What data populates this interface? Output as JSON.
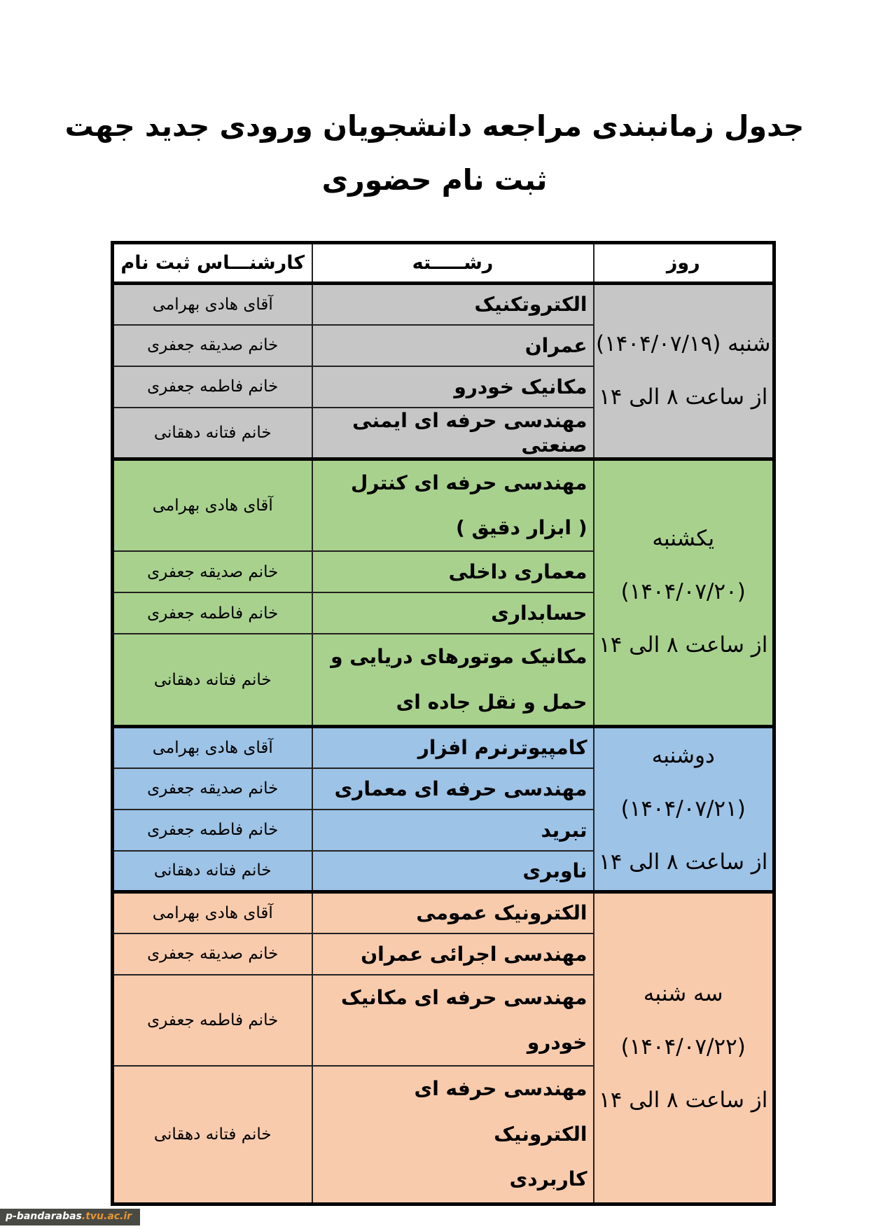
{
  "page": {
    "title_line1": "جدول زمانبندی مراجعه دانشجویان ورودی جدید جهت",
    "title_line2": "ثبت نام حضوری"
  },
  "table": {
    "headers": {
      "day": "روز",
      "major": "رشـــــته",
      "expert": "کارشنـــاس ثبت نام"
    },
    "groups": [
      {
        "name": "saturday",
        "color": "#c6c6c6",
        "day": "شنبه (۱۴۰۴/۰۷/۱۹)\nاز ساعت ۸ الی ۱۴",
        "rows": [
          {
            "major": "الکتروتکنیک",
            "expert": "آقای هادی بهرامی"
          },
          {
            "major": "عمران",
            "expert": "خانم صدیقه جعفری"
          },
          {
            "major": "مکانیک خودرو",
            "expert": "خانم فاطمه جعفری"
          },
          {
            "major": "مهندسی حرفه ای ایمنی صنعتی",
            "expert": "خانم فتانه دهقانی"
          }
        ]
      },
      {
        "name": "sunday",
        "color": "#a9d18e",
        "day": "یکشنبه (۱۴۰۴/۰۷/۲۰)\nاز ساعت ۸ الی ۱۴",
        "rows": [
          {
            "major": "مهندسی حرفه ای کنترل\n( ابزار دقیق )",
            "expert": "آقای هادی بهرامی"
          },
          {
            "major": "معماری داخلی",
            "expert": "خانم صدیقه جعفری"
          },
          {
            "major": "حسابداری",
            "expert": "خانم فاطمه جعفری"
          },
          {
            "major": "مکانیک موتورهای دریایی و\nحمل و نقل جاده ای",
            "expert": "خانم فتانه دهقانی"
          }
        ]
      },
      {
        "name": "monday",
        "color": "#9dc3e6",
        "day": "دوشنبه (۱۴۰۴/۰۷/۲۱)\nاز ساعت ۸ الی ۱۴",
        "rows": [
          {
            "major": "کامپیوترنرم افزار",
            "expert": "آقای هادی بهرامی"
          },
          {
            "major": "مهندسی حرفه ای معماری",
            "expert": "خانم صدیقه جعفری"
          },
          {
            "major": "تبرید",
            "expert": "خانم فاطمه جعفری"
          },
          {
            "major": "ناوبری",
            "expert": "خانم فتانه دهقانی"
          }
        ]
      },
      {
        "name": "tuesday",
        "color": "#f8cbad",
        "day": "سه شنبه (۱۴۰۴/۰۷/۲۲)\nاز ساعت ۸ الی ۱۴",
        "rows": [
          {
            "major": "الکترونیک عمومی",
            "expert": "آقای هادی بهرامی"
          },
          {
            "major": "مهندسی اجرائی عمران",
            "expert": "خانم صدیقه جعفری"
          },
          {
            "major": "مهندسی حرفه ای مکانیک\nخودرو",
            "expert": "خانم فاطمه جعفری"
          },
          {
            "major": "مهندسی حرفه ای الکترونیک\nکاربردی",
            "expert": "خانم فتانه دهقانی"
          }
        ]
      }
    ]
  },
  "watermark": {
    "site": "p-bandarabas",
    "domain": ".tvu.ac.ir",
    "bar_color": "#4a4a45",
    "site_color": "#ffffff",
    "domain_color": "#e8962e"
  }
}
